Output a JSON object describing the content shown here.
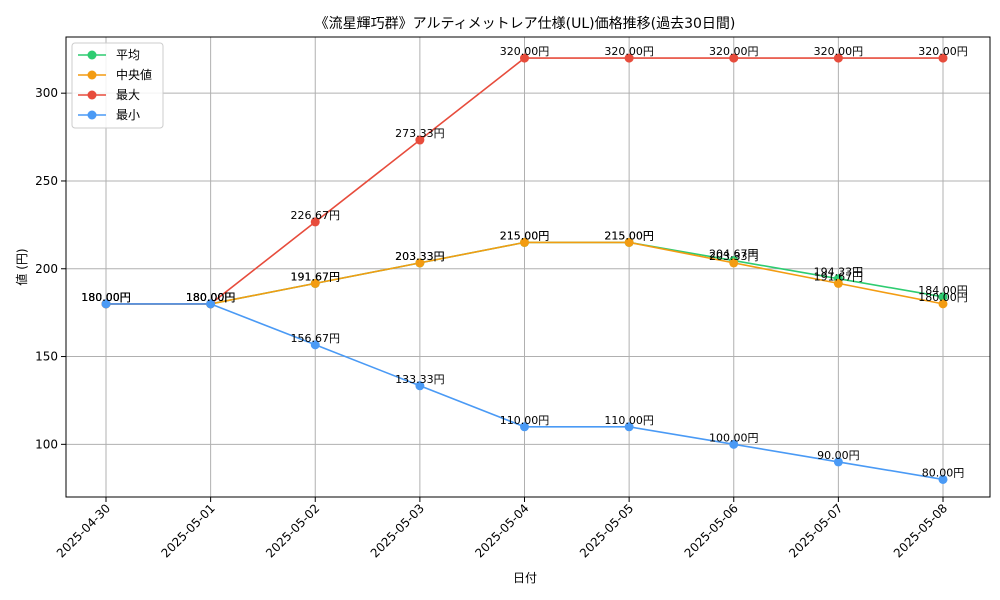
{
  "chart_data": {
    "type": "line",
    "title": "《流星輝巧群》アルティメットレア仕様(UL)価格推移(過去30日間)",
    "xlabel": "日付",
    "ylabel": "値 (円)",
    "categories": [
      "2025-04-30",
      "2025-05-01",
      "2025-05-02",
      "2025-05-03",
      "2025-05-04",
      "2025-05-05",
      "2025-05-06",
      "2025-05-07",
      "2025-05-08"
    ],
    "yticks": [
      100,
      150,
      200,
      250,
      300
    ],
    "ylim": [
      70,
      332
    ],
    "grid": true,
    "legend_position": "top-left",
    "label_suffix": "円",
    "series": [
      {
        "name": "平均",
        "color": "#2ecc71",
        "values": [
          180.0,
          180.0,
          191.67,
          203.33,
          215.0,
          215.0,
          204.67,
          194.33,
          184.0
        ]
      },
      {
        "name": "中央値",
        "color": "#f39c12",
        "values": [
          180.0,
          180.0,
          191.67,
          203.33,
          215.0,
          215.0,
          203.33,
          191.67,
          180.0
        ]
      },
      {
        "name": "最大",
        "color": "#e74c3c",
        "values": [
          180.0,
          180.0,
          226.67,
          273.33,
          320.0,
          320.0,
          320.0,
          320.0,
          320.0
        ]
      },
      {
        "name": "最小",
        "color": "#4a9af5",
        "values": [
          180.0,
          180.0,
          156.67,
          133.33,
          110.0,
          110.0,
          100.0,
          90.0,
          80.0
        ]
      }
    ]
  }
}
